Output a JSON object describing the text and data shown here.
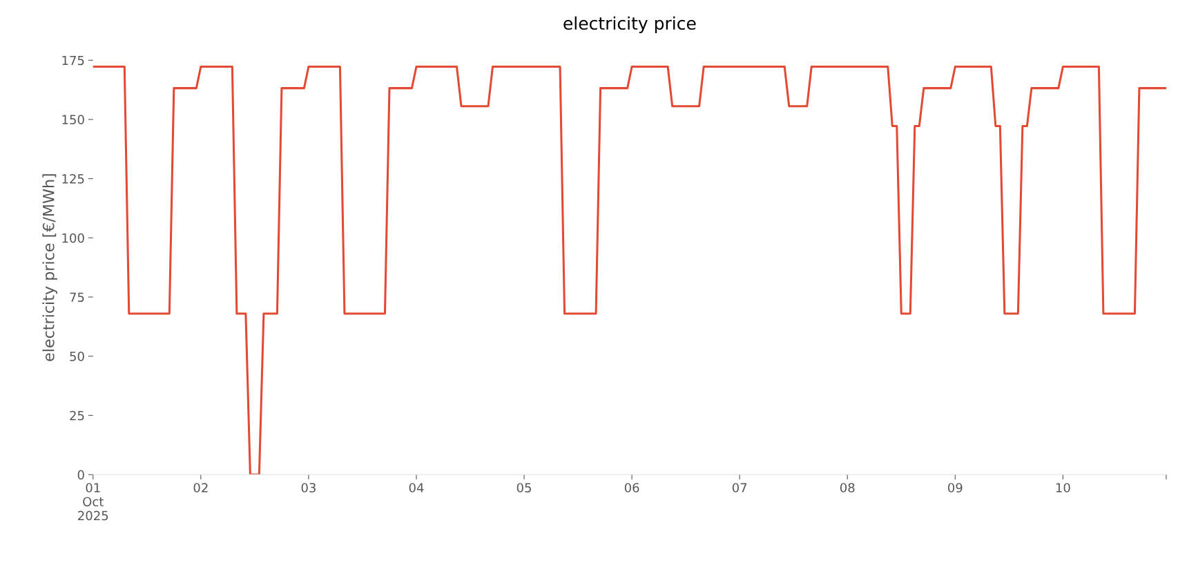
{
  "chart_data": {
    "type": "line",
    "title": "electricity price",
    "ylabel": "electricity price [€/MWh]",
    "x": [
      "2025-10-01T00:00",
      "2025-10-01T07:00",
      "2025-10-01T08:00",
      "2025-10-01T17:00",
      "2025-10-01T18:00",
      "2025-10-01T23:00",
      "2025-10-02T00:00",
      "2025-10-02T07:00",
      "2025-10-02T08:00",
      "2025-10-02T10:00",
      "2025-10-02T11:00",
      "2025-10-02T13:00",
      "2025-10-02T14:00",
      "2025-10-02T17:00",
      "2025-10-02T18:00",
      "2025-10-02T23:00",
      "2025-10-03T00:00",
      "2025-10-03T07:00",
      "2025-10-03T08:00",
      "2025-10-03T17:00",
      "2025-10-03T18:00",
      "2025-10-03T23:00",
      "2025-10-04T00:00",
      "2025-10-04T09:00",
      "2025-10-04T10:00",
      "2025-10-04T16:00",
      "2025-10-04T17:00",
      "2025-10-05T08:00",
      "2025-10-05T09:00",
      "2025-10-05T16:00",
      "2025-10-05T17:00",
      "2025-10-05T23:00",
      "2025-10-06T00:00",
      "2025-10-06T08:00",
      "2025-10-06T09:00",
      "2025-10-06T15:00",
      "2025-10-06T16:00",
      "2025-10-07T10:00",
      "2025-10-07T11:00",
      "2025-10-07T15:00",
      "2025-10-07T16:00",
      "2025-10-08T09:00",
      "2025-10-08T10:00",
      "2025-10-08T11:00",
      "2025-10-08T12:00",
      "2025-10-08T14:00",
      "2025-10-08T15:00",
      "2025-10-08T16:00",
      "2025-10-08T17:00",
      "2025-10-08T23:00",
      "2025-10-09T00:00",
      "2025-10-09T08:00",
      "2025-10-09T09:00",
      "2025-10-09T10:00",
      "2025-10-09T11:00",
      "2025-10-09T14:00",
      "2025-10-09T15:00",
      "2025-10-09T16:00",
      "2025-10-09T17:00",
      "2025-10-09T23:00",
      "2025-10-10T00:00",
      "2025-10-10T08:00",
      "2025-10-10T09:00",
      "2025-10-10T16:00",
      "2025-10-10T17:00",
      "2025-10-10T23:00"
    ],
    "series": [
      {
        "color": "#e24a33",
        "values": [
          172.3,
          172.3,
          68,
          68,
          163.2,
          163.2,
          172.3,
          172.3,
          68,
          68,
          0,
          0,
          68,
          68,
          163.2,
          163.2,
          172.3,
          172.3,
          68,
          68,
          163.2,
          163.2,
          172.3,
          172.3,
          155.6,
          155.6,
          172.3,
          172.3,
          68,
          68,
          163.2,
          163.2,
          172.3,
          172.3,
          155.6,
          155.6,
          172.3,
          172.3,
          155.6,
          155.6,
          172.3,
          172.3,
          147.2,
          147.2,
          68,
          68,
          147.2,
          147.2,
          163.2,
          163.2,
          172.3,
          172.3,
          147.2,
          147.2,
          68,
          68,
          147.2,
          147.2,
          163.2,
          163.2,
          172.3,
          172.3,
          68,
          68,
          163.2,
          163.2
        ]
      }
    ],
    "xticks": [
      {
        "value": "2025-10-01",
        "label": "01\nOct\n2025"
      },
      {
        "value": "2025-10-02",
        "label": "02"
      },
      {
        "value": "2025-10-03",
        "label": "03"
      },
      {
        "value": "2025-10-04",
        "label": "04"
      },
      {
        "value": "2025-10-05",
        "label": "05"
      },
      {
        "value": "2025-10-06",
        "label": "06"
      },
      {
        "value": "2025-10-07",
        "label": "07"
      },
      {
        "value": "2025-10-08",
        "label": "08"
      },
      {
        "value": "2025-10-09",
        "label": "09"
      },
      {
        "value": "2025-10-10",
        "label": "10"
      },
      {
        "value": "2025-10-10T23:00",
        "label": null
      }
    ],
    "xlim": [
      "2025-10-01T00:00",
      "2025-10-10T23:00"
    ],
    "ylim": [
      0,
      175
    ],
    "yticks": [
      0,
      25,
      50,
      75,
      100,
      125,
      150,
      175
    ],
    "line_style": "solid",
    "marker": "none"
  }
}
